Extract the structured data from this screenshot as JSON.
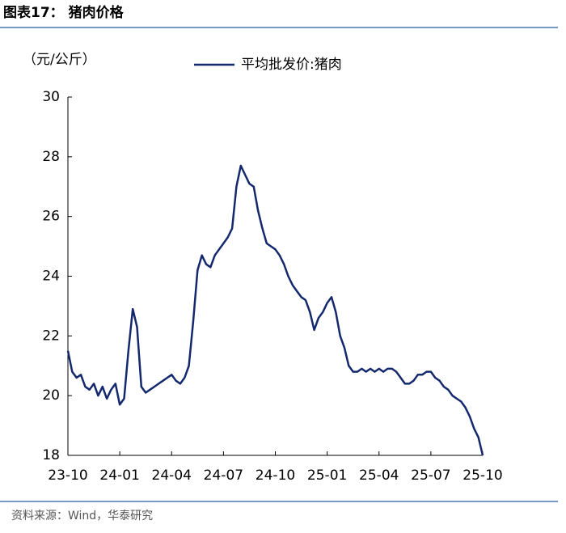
{
  "title": "图表17：  猪肉价格",
  "source": "资料来源：Wind，华泰研究",
  "chart_data": {
    "type": "line",
    "y_label": "（元/公斤）",
    "x": [
      "23-10",
      "23-10",
      "23-10",
      "23-10",
      "23-11",
      "23-11",
      "23-11",
      "23-11",
      "23-12",
      "23-12",
      "23-12",
      "23-12",
      "24-01",
      "24-01",
      "24-01",
      "24-01",
      "24-02",
      "24-02",
      "24-02",
      "24-02",
      "24-03",
      "24-03",
      "24-03",
      "24-03",
      "24-04",
      "24-04",
      "24-04",
      "24-04",
      "24-05",
      "24-05",
      "24-05",
      "24-05",
      "24-06",
      "24-06",
      "24-06",
      "24-06",
      "24-07",
      "24-07",
      "24-07",
      "24-07",
      "24-08",
      "24-08",
      "24-08",
      "24-08",
      "24-09",
      "24-09",
      "24-09",
      "24-09",
      "24-10",
      "24-10",
      "24-10",
      "24-10",
      "24-11",
      "24-11",
      "24-11",
      "24-11",
      "24-12",
      "24-12",
      "24-12",
      "24-12",
      "25-01",
      "25-01",
      "25-01",
      "25-01",
      "25-02",
      "25-02",
      "25-02",
      "25-02",
      "25-03",
      "25-03",
      "25-03",
      "25-03",
      "25-04",
      "25-04",
      "25-04",
      "25-04",
      "25-05",
      "25-05",
      "25-05",
      "25-05",
      "25-06",
      "25-06",
      "25-06",
      "25-06",
      "25-07",
      "25-07",
      "25-07",
      "25-07",
      "25-08",
      "25-08",
      "25-08",
      "25-08",
      "25-09",
      "25-09",
      "25-09",
      "25-09",
      "25-10"
    ],
    "series": [
      {
        "name": "平均批发价:猪肉",
        "color": "#14286e",
        "values": [
          21.5,
          20.8,
          20.6,
          20.7,
          20.3,
          20.2,
          20.4,
          20.0,
          20.3,
          19.9,
          20.2,
          20.4,
          19.7,
          19.9,
          21.5,
          22.9,
          22.3,
          20.3,
          20.1,
          20.2,
          20.3,
          20.4,
          20.5,
          20.6,
          20.7,
          20.5,
          20.4,
          20.6,
          21.0,
          22.5,
          24.2,
          24.7,
          24.4,
          24.3,
          24.7,
          24.9,
          25.1,
          25.3,
          25.6,
          27.0,
          27.7,
          27.4,
          27.1,
          27.0,
          26.2,
          25.6,
          25.1,
          25.0,
          24.9,
          24.7,
          24.4,
          24.0,
          23.7,
          23.5,
          23.3,
          23.2,
          22.8,
          22.2,
          22.6,
          22.8,
          23.1,
          23.3,
          22.8,
          22.0,
          21.6,
          21.0,
          20.8,
          20.8,
          20.9,
          20.8,
          20.9,
          20.8,
          20.9,
          20.8,
          20.9,
          20.9,
          20.8,
          20.6,
          20.4,
          20.4,
          20.5,
          20.7,
          20.7,
          20.8,
          20.8,
          20.6,
          20.5,
          20.3,
          20.2,
          20.0,
          19.9,
          19.8,
          19.6,
          19.3,
          18.9,
          18.6,
          18.0
        ]
      }
    ],
    "xticks": [
      "23-10",
      "24-01",
      "24-04",
      "24-07",
      "24-10",
      "25-01",
      "25-04",
      "25-07",
      "25-10"
    ],
    "ylim": [
      18,
      30
    ],
    "yticks": [
      18,
      20,
      22,
      24,
      26,
      28,
      30
    ],
    "grid": false,
    "legend": "top"
  }
}
